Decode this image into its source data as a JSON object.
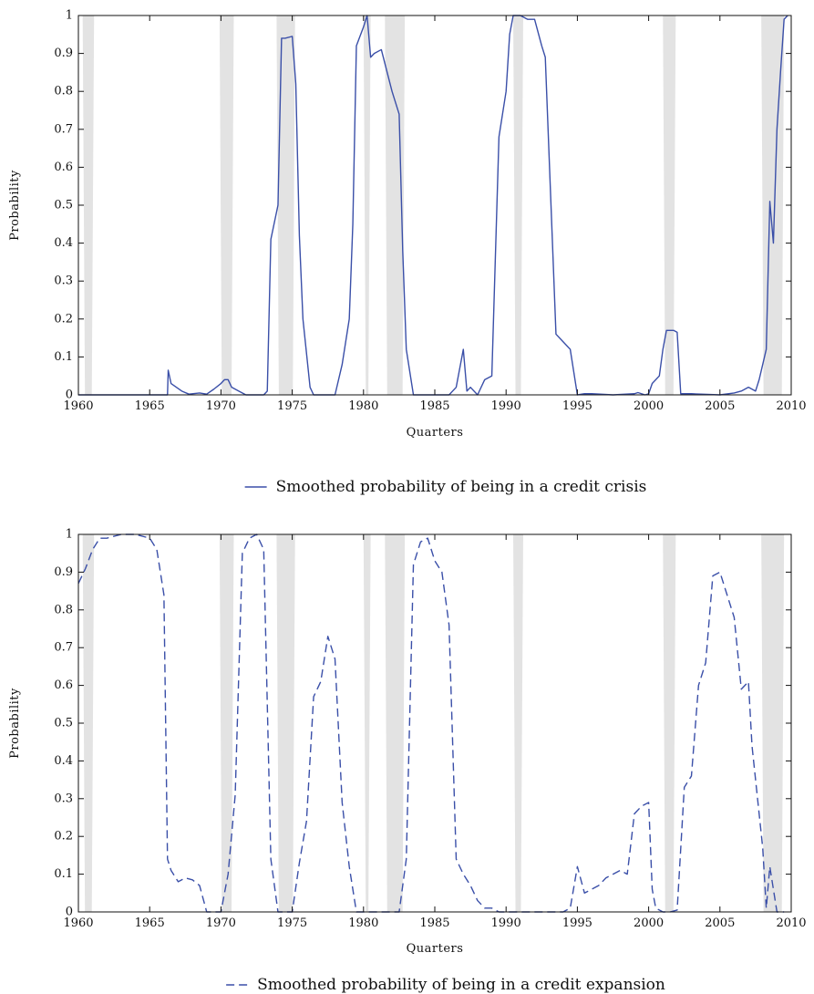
{
  "chart_data": [
    {
      "type": "line",
      "line_style": "solid",
      "color": "#3a4fa8",
      "recession_shading_color": "#e3e3e3",
      "xlabel": "Quarters",
      "ylabel": "Probability",
      "xlim": [
        1960,
        2010
      ],
      "ylim": [
        0,
        1
      ],
      "x_ticks": [
        1960,
        1965,
        1970,
        1975,
        1980,
        1985,
        1990,
        1995,
        2000,
        2005,
        2010
      ],
      "y_ticks": [
        0,
        0.1,
        0.2,
        0.3,
        0.4,
        0.5,
        0.6,
        0.7,
        0.8,
        0.9,
        1
      ],
      "y_tick_labels": [
        "0",
        "0.1",
        "0.2",
        "0.3",
        "0.4",
        "0.5",
        "0.6",
        "0.7",
        "0.8",
        "0.9",
        "1"
      ],
      "grid": false,
      "legend_position": "bottom-center",
      "legend_label": "Smoothed probability of being in a credit crisis",
      "shaded_periods": [
        [
          1960.3,
          1961.1
        ],
        [
          1969.9,
          1970.9
        ],
        [
          1973.9,
          1975.2
        ],
        [
          1980.0,
          1980.5
        ],
        [
          1981.5,
          1982.9
        ],
        [
          1990.5,
          1991.2
        ],
        [
          2001.0,
          2001.9
        ],
        [
          2007.9,
          2009.5
        ]
      ],
      "series": [
        {
          "name": "Smoothed probability of being in a credit crisis",
          "x": [
            1960,
            1966.25,
            1966.3,
            1966.5,
            1967.25,
            1967.75,
            1968.5,
            1969.0,
            1969.5,
            1970.0,
            1970.25,
            1970.5,
            1970.75,
            1971.25,
            1971.75,
            1973.0,
            1973.25,
            1973.5,
            1974.0,
            1974.25,
            1974.5,
            1975.0,
            1975.25,
            1975.5,
            1975.75,
            1976.25,
            1976.5,
            1977.5,
            1978.0,
            1978.5,
            1979.0,
            1979.25,
            1979.5,
            1980.0,
            1980.25,
            1980.5,
            1980.75,
            1981.25,
            1982.0,
            1982.5,
            1982.75,
            1983.0,
            1983.5,
            1983.75,
            1984.25,
            1986.0,
            1986.5,
            1987.0,
            1987.25,
            1987.5,
            1988.0,
            1988.5,
            1989.0,
            1989.5,
            1990.0,
            1990.25,
            1990.5,
            1991.0,
            1991.5,
            1992.0,
            1992.5,
            1992.75,
            1993.5,
            1994.0,
            1994.5,
            1995.0,
            1995.5,
            1996.0,
            1997.5,
            1999.0,
            1999.25,
            1999.75,
            2000.0,
            2000.25,
            2000.75,
            2001.0,
            2001.25,
            2001.75,
            2002.0,
            2002.25,
            2002.5,
            2003.0,
            2005.0,
            2006.0,
            2006.5,
            2007.0,
            2007.5,
            2007.75,
            2008.25,
            2008.5,
            2008.75,
            2009.0,
            2009.25,
            2009.5,
            2009.75
          ],
          "values": [
            0,
            0,
            0.065,
            0.03,
            0.01,
            0.002,
            0.005,
            0.002,
            0.015,
            0.03,
            0.04,
            0.04,
            0.02,
            0.01,
            0,
            0,
            0.01,
            0.41,
            0.5,
            0.94,
            0.94,
            0.945,
            0.82,
            0.42,
            0.2,
            0.02,
            0,
            0,
            0,
            0.08,
            0.2,
            0.45,
            0.92,
            0.97,
            1.0,
            0.89,
            0.9,
            0.91,
            0.8,
            0.74,
            0.38,
            0.12,
            0,
            0,
            0,
            0,
            0.02,
            0.12,
            0.01,
            0.02,
            0,
            0.04,
            0.05,
            0.68,
            0.8,
            0.95,
            1.0,
            1.0,
            0.99,
            0.99,
            0.92,
            0.89,
            0.16,
            0.14,
            0.12,
            0,
            0.003,
            0.003,
            0,
            0.003,
            0.006,
            0,
            0.003,
            0.03,
            0.05,
            0.12,
            0.17,
            0.17,
            0.165,
            0.003,
            0.003,
            0.003,
            0,
            0.005,
            0.01,
            0.02,
            0.01,
            0.04,
            0.12,
            0.51,
            0.4,
            0.7,
            0.85,
            0.99,
            1.0
          ]
        }
      ]
    },
    {
      "type": "line",
      "line_style": "dashed",
      "color": "#3a4fa8",
      "recession_shading_color": "#e3e3e3",
      "xlabel": "Quarters",
      "ylabel": "Probability",
      "xlim": [
        1960,
        2010
      ],
      "ylim": [
        0,
        1
      ],
      "x_ticks": [
        1960,
        1965,
        1970,
        1975,
        1980,
        1985,
        1990,
        1995,
        2000,
        2005,
        2010
      ],
      "y_ticks": [
        0,
        0.1,
        0.2,
        0.3,
        0.4,
        0.5,
        0.6,
        0.7,
        0.8,
        0.9,
        1
      ],
      "y_tick_labels": [
        "0",
        "0.1",
        "0.2",
        "0.3",
        "0.4",
        "0.5",
        "0.6",
        "0.7",
        "0.8",
        "0.9",
        "1"
      ],
      "grid": false,
      "legend_position": "bottom-center",
      "legend_label": "Smoothed probability of being in a credit expansion",
      "shaded_periods": [
        [
          1960.3,
          1961.1
        ],
        [
          1969.9,
          1970.9
        ],
        [
          1973.9,
          1975.2
        ],
        [
          1980.0,
          1980.5
        ],
        [
          1981.5,
          1982.9
        ],
        [
          1990.5,
          1991.2
        ],
        [
          2001.0,
          2001.9
        ],
        [
          2007.9,
          2009.5
        ]
      ],
      "series": [
        {
          "name": "Smoothed probability of being in a credit expansion",
          "x": [
            1960,
            1960.5,
            1961,
            1961.5,
            1962,
            1963,
            1964,
            1965,
            1965.5,
            1966,
            1966.25,
            1966.5,
            1967,
            1967.5,
            1968,
            1968.5,
            1969,
            1969.5,
            1970,
            1970.5,
            1971,
            1971.5,
            1972,
            1972.5,
            1973,
            1973.5,
            1974,
            1974.5,
            1975,
            1975.5,
            1976,
            1976.5,
            1977,
            1977.5,
            1978,
            1978.5,
            1979,
            1979.5,
            1980,
            1980.5,
            1981,
            1981.5,
            1982,
            1982.5,
            1983,
            1983.5,
            1984,
            1984.5,
            1985,
            1985.5,
            1986,
            1986.5,
            1987,
            1987.5,
            1988,
            1988.5,
            1989,
            1989.5,
            1990,
            1991,
            1992,
            1993,
            1994,
            1994.5,
            1995,
            1995.5,
            1996,
            1996.5,
            1997,
            1997.5,
            1998,
            1998.5,
            1999,
            1999.5,
            2000,
            2000.25,
            2000.5,
            2001,
            2001.5,
            2002,
            2002.5,
            2003,
            2003.5,
            2004,
            2004.5,
            2005,
            2005.5,
            2006,
            2006.5,
            2007,
            2007.25,
            2007.5,
            2008,
            2008.25,
            2008.5,
            2008.75,
            2009,
            2009.5
          ],
          "values": [
            0.87,
            0.91,
            0.96,
            0.99,
            0.99,
            1.0,
            1.0,
            0.99,
            0.96,
            0.84,
            0.14,
            0.11,
            0.08,
            0.09,
            0.085,
            0.07,
            0.0,
            0.0,
            0.0,
            0.1,
            0.31,
            0.95,
            0.99,
            1.0,
            0.96,
            0.14,
            0.0,
            0.0,
            0.0,
            0.13,
            0.24,
            0.57,
            0.61,
            0.73,
            0.67,
            0.29,
            0.12,
            0.0,
            0.0,
            0.0,
            0.0,
            0.0,
            0.0,
            0.0,
            0.14,
            0.92,
            0.98,
            0.99,
            0.93,
            0.9,
            0.76,
            0.14,
            0.1,
            0.07,
            0.03,
            0.01,
            0.01,
            0.0,
            0.0,
            0.0,
            0.0,
            0.0,
            0.0,
            0.01,
            0.12,
            0.05,
            0.06,
            0.07,
            0.09,
            0.1,
            0.11,
            0.1,
            0.26,
            0.28,
            0.29,
            0.06,
            0.01,
            0.0,
            0.0,
            0.005,
            0.33,
            0.36,
            0.6,
            0.66,
            0.89,
            0.9,
            0.84,
            0.78,
            0.59,
            0.61,
            0.44,
            0.35,
            0.17,
            0.01,
            0.12,
            0.06,
            0.0,
            0.0
          ]
        }
      ]
    }
  ]
}
